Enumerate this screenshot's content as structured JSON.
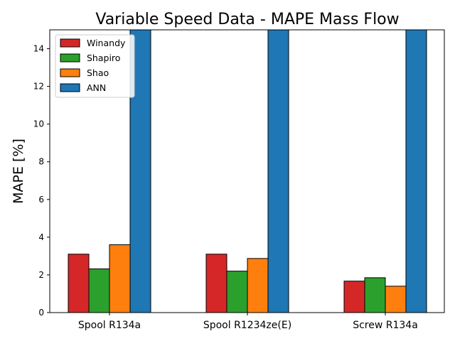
{
  "chart_data": {
    "type": "bar",
    "title": "Variable Speed Data - MAPE Mass Flow",
    "xlabel": "",
    "ylabel": "MAPE [%]",
    "ylim": [
      0,
      15
    ],
    "yticks": [
      0,
      2,
      4,
      6,
      8,
      10,
      12,
      14
    ],
    "categories": [
      "Spool R134a",
      "Spool R1234ze(E)",
      "Screw R134a"
    ],
    "series": [
      {
        "name": "Winandy",
        "color": "#d62728",
        "values": [
          3.1,
          3.1,
          1.67
        ]
      },
      {
        "name": "Shapiro",
        "color": "#2ca02c",
        "values": [
          2.32,
          2.2,
          1.85
        ]
      },
      {
        "name": "Shao",
        "color": "#ff7f0e",
        "values": [
          3.6,
          2.87,
          1.4
        ]
      },
      {
        "name": "ANN",
        "color": "#1f77b4",
        "values": [
          15,
          15,
          15
        ]
      }
    ],
    "legend_position": "upper-left",
    "grid": false
  }
}
